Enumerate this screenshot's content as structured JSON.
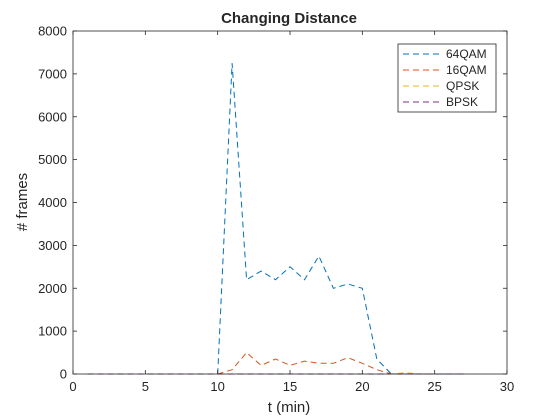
{
  "chart_data": {
    "type": "line",
    "title": "Changing Distance",
    "xlabel": "t (min)",
    "ylabel": "# frames",
    "xlim": [
      0,
      30
    ],
    "ylim": [
      0,
      8000
    ],
    "xticks": [
      0,
      5,
      10,
      15,
      20,
      25,
      30
    ],
    "yticks": [
      0,
      1000,
      2000,
      3000,
      4000,
      5000,
      6000,
      7000,
      8000
    ],
    "grid": false,
    "legend_position": "top-right",
    "line_style": "dashed",
    "x": [
      1,
      2,
      3,
      4,
      5,
      6,
      7,
      8,
      9,
      10,
      11,
      12,
      13,
      14,
      15,
      16,
      17,
      18,
      19,
      20,
      21,
      22,
      23,
      24,
      25,
      26,
      27
    ],
    "series": [
      {
        "name": "64QAM",
        "color": "#0072BD",
        "values": [
          0,
          0,
          0,
          0,
          0,
          0,
          0,
          0,
          0,
          0,
          7250,
          2200,
          2400,
          2200,
          2500,
          2200,
          2750,
          2000,
          2100,
          2000,
          350,
          0,
          0,
          0,
          0,
          0,
          0
        ]
      },
      {
        "name": "16QAM",
        "color": "#D95319",
        "values": [
          0,
          0,
          0,
          0,
          0,
          0,
          0,
          0,
          0,
          0,
          100,
          500,
          200,
          350,
          200,
          300,
          250,
          250,
          380,
          250,
          100,
          0,
          0,
          0,
          0,
          0,
          0
        ]
      },
      {
        "name": "QPSK",
        "color": "#EDB120",
        "values": [
          0,
          0,
          0,
          0,
          0,
          0,
          0,
          0,
          0,
          0,
          0,
          0,
          0,
          0,
          0,
          0,
          0,
          0,
          0,
          0,
          0,
          0,
          30,
          0,
          0,
          0,
          0
        ]
      },
      {
        "name": "BPSK",
        "color": "#7E2F8E",
        "values": [
          0,
          0,
          0,
          0,
          0,
          0,
          0,
          0,
          0,
          0,
          0,
          0,
          0,
          0,
          0,
          0,
          0,
          0,
          0,
          0,
          0,
          0,
          0,
          0,
          0,
          0,
          0
        ]
      }
    ]
  }
}
